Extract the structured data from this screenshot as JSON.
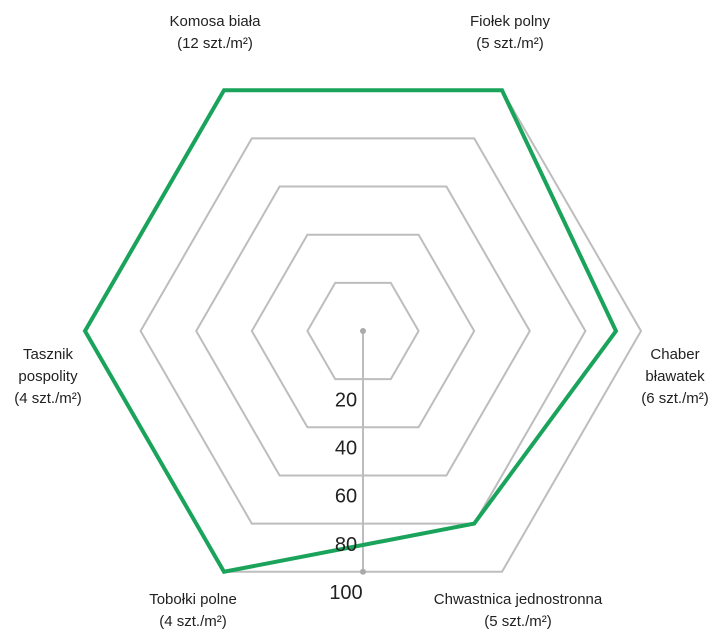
{
  "chart_data": {
    "type": "radar",
    "categories": [
      "Komosa biała",
      "Fiołek polny",
      "Chaber bławatek",
      "Chwastnica jednostronna",
      "Tobołki polne",
      "Tasznik pospolity"
    ],
    "category_units": [
      "(12 szt./m²)",
      "(5 szt./m²)",
      "(6 szt./m²)",
      "(5 szt./m²)",
      "(4 szt./m²)",
      "(4 szt./m²)"
    ],
    "series": [
      {
        "color": "#1aa35a",
        "values": [
          100,
          100,
          91,
          80,
          100,
          100
        ]
      }
    ],
    "ylim": [
      0,
      100
    ],
    "yticks": [
      20,
      40,
      60,
      80,
      100
    ],
    "grid": true
  }
}
